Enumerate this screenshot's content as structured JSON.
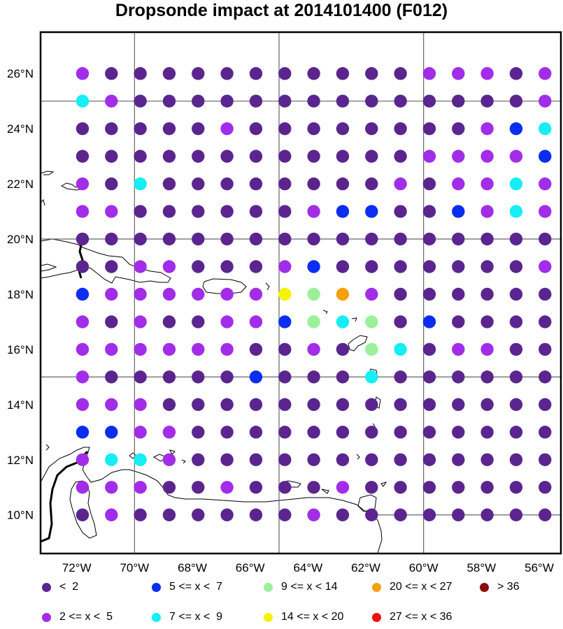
{
  "title": "Dropsonde impact at 2014101400 (F012)",
  "chart_data": {
    "type": "scatter",
    "title": "Dropsonde impact at 2014101400 (F012)",
    "x_ticks": [
      "72°W",
      "70°W",
      "68°W",
      "66°W",
      "64°W",
      "62°W",
      "60°W",
      "58°W",
      "56°W"
    ],
    "y_ticks": [
      "26°N",
      "24°N",
      "22°N",
      "20°N",
      "18°N",
      "16°N",
      "14°N",
      "12°N",
      "10°N"
    ],
    "lon_range": [
      -73.25,
      -55.25
    ],
    "lat_range": [
      8.6,
      27.5
    ],
    "grid": true,
    "legend_position": "bottom",
    "categories": [
      {
        "label": "<  2",
        "color": "#5b2590"
      },
      {
        "label": "2 <= x <  5",
        "color": "#a22de8"
      },
      {
        "label": "5 <= x <  7",
        "color": "#0a2df0"
      },
      {
        "label": "7 <= x <  9",
        "color": "#14eef4"
      },
      {
        "label": "9 <= x < 14",
        "color": "#9bf09b"
      },
      {
        "label": "14 <= x < 20",
        "color": "#f4f404"
      },
      {
        "label": "20 <= x < 27",
        "color": "#f7a00c"
      },
      {
        "label": "27 <= x < 36",
        "color": "#f01010"
      },
      {
        "label": "> 36",
        "color": "#8b0a0a"
      }
    ],
    "lons": [
      -71.8,
      -70.8,
      -69.8,
      -68.8,
      -67.8,
      -66.8,
      -65.8,
      -64.8,
      -63.8,
      -62.8,
      -61.8,
      -60.8,
      -59.8,
      -58.8,
      -57.8,
      -56.8,
      -55.8
    ],
    "lats": [
      26,
      25,
      24,
      23,
      22,
      21,
      20,
      19,
      18,
      17,
      16,
      15,
      14,
      13,
      12,
      11,
      10
    ],
    "impact_category_grid": [
      "10000000000011101",
      "31000000000000001",
      "00000100000000123",
      "00000000000011112",
      "10300000000101131",
      "11000000122002131",
      "00000000000000000",
      "00110001200000001",
      "21111115461000000",
      "10100112434020000",
      "11111100104301100",
      "10000020003000000",
      "11100000000000000",
      "22110000000000000",
      "13310000000000000",
      "11100100010000000",
      "01000000100000000"
    ]
  }
}
